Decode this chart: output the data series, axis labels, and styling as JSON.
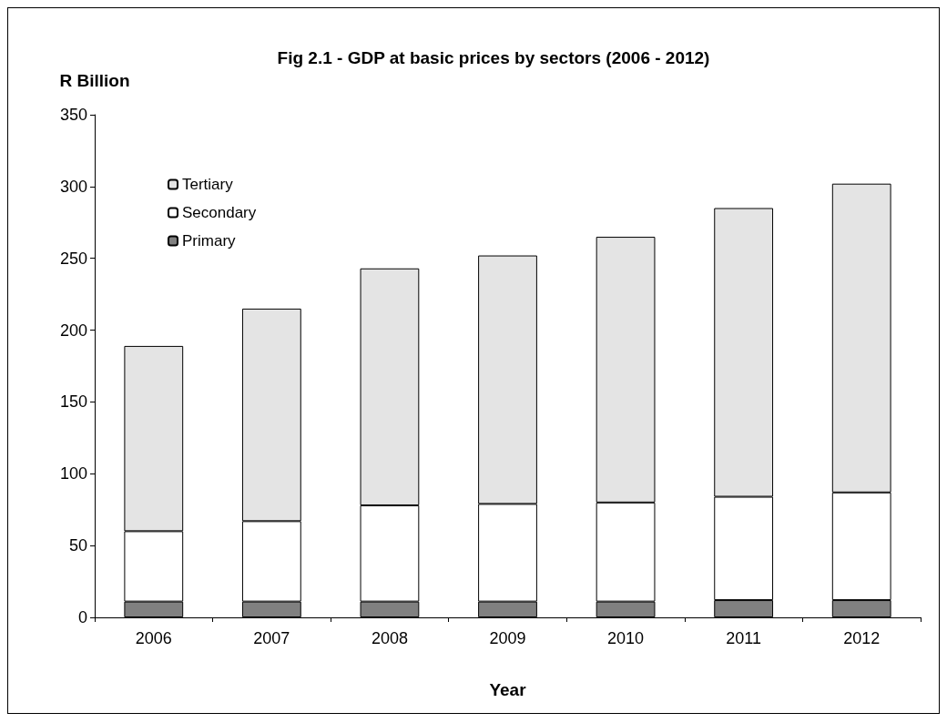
{
  "chart_data": {
    "type": "bar",
    "title": "Fig 2.1 - GDP at basic prices by sectors (2006 - 2012)",
    "ylabel": "R Billion",
    "xlabel": "Year",
    "stacked": true,
    "categories": [
      "2006",
      "2007",
      "2008",
      "2009",
      "2010",
      "2011",
      "2012"
    ],
    "series": [
      {
        "name": "Primary",
        "color": "#808080",
        "values": [
          11,
          11,
          11,
          11,
          11,
          12,
          12
        ]
      },
      {
        "name": "Secondary",
        "color": "#ffffff",
        "values": [
          49,
          56,
          67,
          68,
          69,
          72,
          75
        ]
      },
      {
        "name": "Tertiary",
        "color": "#e4e4e4",
        "values": [
          129,
          148,
          165,
          173,
          185,
          201,
          215
        ]
      }
    ],
    "ylim": [
      0,
      350
    ],
    "yticks": [
      0,
      50,
      100,
      150,
      200,
      250,
      300,
      350
    ],
    "grid": false,
    "legend": "top left"
  }
}
